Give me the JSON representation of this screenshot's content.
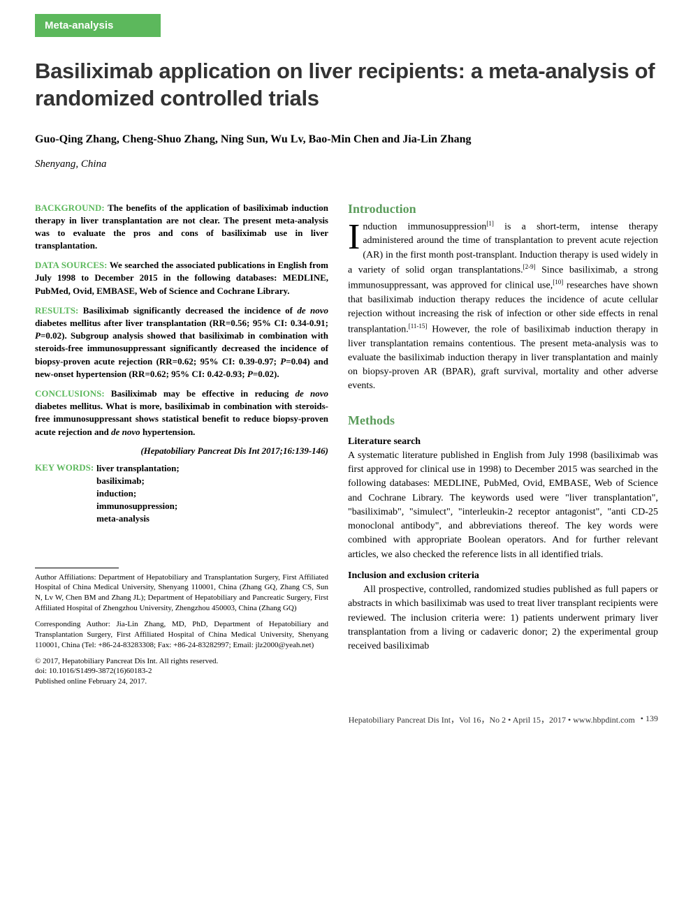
{
  "header": {
    "category": "Meta-analysis"
  },
  "article": {
    "title": "Basiliximab application on liver recipients: a meta-analysis of randomized controlled trials",
    "authors": "Guo-Qing Zhang, Cheng-Shuo Zhang, Ning Sun, Wu Lv, Bao-Min Chen and Jia-Lin Zhang",
    "affiliation": "Shenyang, China"
  },
  "abstract": {
    "background_label": "BACKGROUND:",
    "background_text": " The benefits of the application of basiliximab induction therapy in liver transplantation are not clear. The present meta-analysis was to evaluate the pros and cons of basiliximab use in liver transplantation.",
    "datasources_label": "DATA SOURCES:",
    "datasources_text": " We searched the associated publications in English from July 1998 to December 2015 in the following databases: MEDLINE, PubMed, Ovid, EMBASE, Web of Science and Cochrane Library.",
    "results_label": "RESULTS:",
    "results_text_1": " Basiliximab significantly decreased the incidence of ",
    "results_em_1": "de novo",
    "results_text_2": " diabetes mellitus after liver transplantation (RR=0.56; 95% CI: 0.34-0.91; ",
    "results_em_2": "P",
    "results_text_3": "=0.02). Subgroup analysis showed that basiliximab in combination with steroids-free immunosuppressant significantly decreased the incidence of biopsy-proven acute rejection (RR=0.62; 95% CI: 0.39-0.97; ",
    "results_em_3": "P",
    "results_text_4": "=0.04) and new-onset hypertension (RR=0.62; 95% CI: 0.42-0.93; ",
    "results_em_4": "P",
    "results_text_5": "=0.02).",
    "conclusions_label": "CONCLUSIONS:",
    "conclusions_text_1": " Basiliximab may be effective in reducing ",
    "conclusions_em_1": "de novo",
    "conclusions_text_2": " diabetes mellitus. What is more, basiliximab in combination with steroids-free immunosuppressant shows statistical benefit to reduce biopsy-proven acute rejection and ",
    "conclusions_em_2": "de novo",
    "conclusions_text_3": " hypertension.",
    "citation": "(Hepatobiliary Pancreat Dis Int 2017;16:139-146)",
    "keywords_label": "KEY WORDS:",
    "keywords": [
      "liver transplantation;",
      "basiliximab;",
      "induction;",
      "immunosuppression;",
      "meta-analysis"
    ]
  },
  "footnotes": {
    "affiliations": "Author Affiliations: Department of Hepatobiliary and Transplantation Surgery, First Affiliated Hospital of China Medical University, Shenyang 110001, China (Zhang GQ, Zhang CS, Sun N, Lv W, Chen BM and Zhang JL); Department of Hepatobiliary and Pancreatic Surgery, First Affiliated Hospital of Zhengzhou University, Zhengzhou 450003, China (Zhang GQ)",
    "corresponding": "Corresponding Author: Jia-Lin Zhang, MD, PhD, Department of Hepatobiliary and Transplantation Surgery, First Affiliated Hospital of China Medical University, Shenyang 110001, China (Tel: +86-24-83283308; Fax: +86-24-83282997; Email: jlz2000@yeah.net)",
    "copyright": "© 2017, Hepatobiliary Pancreat Dis Int. All rights reserved.",
    "doi": "doi: 10.1016/S1499-3872(16)60183-2",
    "published": "Published online February 24, 2017."
  },
  "sections": {
    "introduction": {
      "heading": "Introduction",
      "dropcap": "I",
      "text_1": "nduction immunosuppression",
      "sup_1": "[1]",
      "text_2": " is a short-term, intense therapy administered around the time of transplantation to prevent acute rejection (AR) in the first month post-transplant. Induction therapy is used widely in a variety of solid organ transplantations.",
      "sup_2": "[2-9]",
      "text_3": " Since basiliximab, a strong immunosuppressant, was approved for clinical use,",
      "sup_3": "[10]",
      "text_4": " researches have shown that basiliximab induction therapy reduces the incidence of acute cellular rejection without increasing the risk of infection or other side effects in renal transplantation.",
      "sup_4": "[11-15]",
      "text_5": " However, the role of basiliximab induction therapy in liver transplantation remains contentious. The present meta-analysis was to evaluate the basiliximab induction therapy in liver transplantation and mainly on biopsy-proven AR (BPAR), graft survival, mortality and other adverse events."
    },
    "methods": {
      "heading": "Methods",
      "sub1_heading": "Literature search",
      "sub1_text": "A systematic literature published in English from July 1998 (basiliximab was first approved for clinical use in 1998) to December 2015 was searched in the following databases: MEDLINE, PubMed, Ovid, EMBASE, Web of Science and Cochrane Library. The keywords used were \"liver transplantation\", \"basiliximab\", \"simulect\", \"interleukin-2 receptor antagonist\", \"anti CD-25 monoclonal antibody\", and abbreviations thereof. The key words were combined with appropriate Boolean operators. And for further relevant articles, we also checked the reference lists in all identified trials.",
      "sub2_heading": "Inclusion and exclusion criteria",
      "sub2_text": "All prospective, controlled, randomized studies published as full papers or abstracts in which basiliximab was used to treat liver transplant recipients were reviewed. The inclusion criteria were: 1) patients underwent primary liver transplantation from a living or cadaveric donor; 2) the experimental group received basiliximab"
    }
  },
  "footer": {
    "journal": "Hepatobiliary Pancreat Dis Int，Vol 16，No 2 • April 15，2017 • www.hbpdint.com",
    "page": "• 139"
  },
  "colors": {
    "accent_green": "#5cb85c",
    "heading_green": "#5c9c5c",
    "text": "#000000",
    "background": "#ffffff"
  }
}
